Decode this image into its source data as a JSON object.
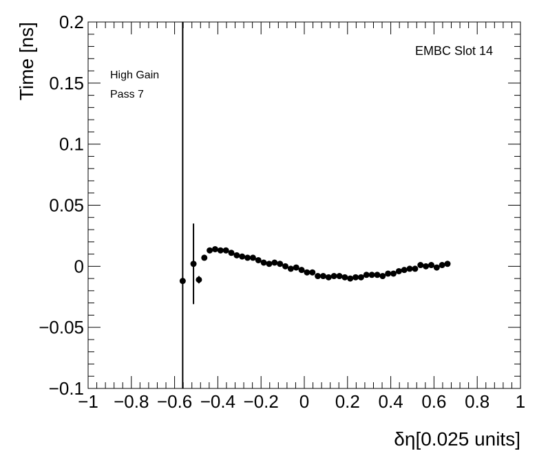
{
  "chart_data": {
    "type": "scatter",
    "title": "",
    "xlabel": "δη[0.025 units]",
    "ylabel": "Time [ns]",
    "xlim": [
      -1,
      1
    ],
    "ylim": [
      -0.1,
      0.2
    ],
    "x_ticks": [
      -1,
      -0.8,
      -0.6,
      -0.4,
      -0.2,
      0,
      0.2,
      0.4,
      0.6,
      0.8,
      1
    ],
    "x_tick_labels": [
      "−1",
      "−0.8",
      "−0.6",
      "−0.4",
      "−0.2",
      "0",
      "0.2",
      "0.4",
      "0.6",
      "0.8",
      "1"
    ],
    "y_ticks": [
      -0.1,
      -0.05,
      0,
      0.05,
      0.1,
      0.15,
      0.2
    ],
    "y_tick_labels": [
      "−0.1",
      "−0.05",
      "0",
      "0.05",
      "0.1",
      "0.15",
      "0.2"
    ],
    "grid": false,
    "marker_color": "#000000",
    "annotations": {
      "top_right": "EMBC Slot 14",
      "left_line1": "High Gain",
      "left_line2": "Pass 7"
    },
    "points": [
      {
        "x": -0.5625,
        "y": -0.012,
        "err": 0.35
      },
      {
        "x": -0.5125,
        "y": 0.002,
        "err": 0.033
      },
      {
        "x": -0.4875,
        "y": -0.011,
        "err": 0.003
      },
      {
        "x": -0.4625,
        "y": 0.007,
        "err": 0.002
      },
      {
        "x": -0.4375,
        "y": 0.013,
        "err": 0.002
      },
      {
        "x": -0.4125,
        "y": 0.014,
        "err": 0.002
      },
      {
        "x": -0.3875,
        "y": 0.013,
        "err": 0.002
      },
      {
        "x": -0.3625,
        "y": 0.013,
        "err": 0.002
      },
      {
        "x": -0.3375,
        "y": 0.011,
        "err": 0.002
      },
      {
        "x": -0.3125,
        "y": 0.009,
        "err": 0.002
      },
      {
        "x": -0.2875,
        "y": 0.008,
        "err": 0.002
      },
      {
        "x": -0.2625,
        "y": 0.007,
        "err": 0.002
      },
      {
        "x": -0.2375,
        "y": 0.007,
        "err": 0.002
      },
      {
        "x": -0.2125,
        "y": 0.005,
        "err": 0.002
      },
      {
        "x": -0.1875,
        "y": 0.003,
        "err": 0.002
      },
      {
        "x": -0.1625,
        "y": 0.002,
        "err": 0.002
      },
      {
        "x": -0.1375,
        "y": 0.003,
        "err": 0.002
      },
      {
        "x": -0.1125,
        "y": 0.002,
        "err": 0.002
      },
      {
        "x": -0.0875,
        "y": 0.0,
        "err": 0.002
      },
      {
        "x": -0.0625,
        "y": -0.002,
        "err": 0.002
      },
      {
        "x": -0.0375,
        "y": -0.001,
        "err": 0.002
      },
      {
        "x": -0.0125,
        "y": -0.003,
        "err": 0.002
      },
      {
        "x": 0.0125,
        "y": -0.005,
        "err": 0.002
      },
      {
        "x": 0.0375,
        "y": -0.005,
        "err": 0.002
      },
      {
        "x": 0.0625,
        "y": -0.008,
        "err": 0.002
      },
      {
        "x": 0.0875,
        "y": -0.008,
        "err": 0.002
      },
      {
        "x": 0.1125,
        "y": -0.009,
        "err": 0.002
      },
      {
        "x": 0.1375,
        "y": -0.008,
        "err": 0.002
      },
      {
        "x": 0.1625,
        "y": -0.008,
        "err": 0.002
      },
      {
        "x": 0.1875,
        "y": -0.009,
        "err": 0.002
      },
      {
        "x": 0.2125,
        "y": -0.01,
        "err": 0.002
      },
      {
        "x": 0.2375,
        "y": -0.009,
        "err": 0.002
      },
      {
        "x": 0.2625,
        "y": -0.009,
        "err": 0.002
      },
      {
        "x": 0.2875,
        "y": -0.007,
        "err": 0.002
      },
      {
        "x": 0.3125,
        "y": -0.007,
        "err": 0.002
      },
      {
        "x": 0.3375,
        "y": -0.007,
        "err": 0.002
      },
      {
        "x": 0.3625,
        "y": -0.008,
        "err": 0.002
      },
      {
        "x": 0.3875,
        "y": -0.006,
        "err": 0.002
      },
      {
        "x": 0.4125,
        "y": -0.006,
        "err": 0.002
      },
      {
        "x": 0.4375,
        "y": -0.004,
        "err": 0.002
      },
      {
        "x": 0.4625,
        "y": -0.003,
        "err": 0.002
      },
      {
        "x": 0.4875,
        "y": -0.002,
        "err": 0.002
      },
      {
        "x": 0.5125,
        "y": -0.002,
        "err": 0.002
      },
      {
        "x": 0.5375,
        "y": 0.001,
        "err": 0.002
      },
      {
        "x": 0.5625,
        "y": 0.0,
        "err": 0.002
      },
      {
        "x": 0.5875,
        "y": 0.001,
        "err": 0.002
      },
      {
        "x": 0.6125,
        "y": -0.001,
        "err": 0.002
      },
      {
        "x": 0.6375,
        "y": 0.001,
        "err": 0.002
      },
      {
        "x": 0.6625,
        "y": 0.002,
        "err": 0.002
      }
    ]
  }
}
